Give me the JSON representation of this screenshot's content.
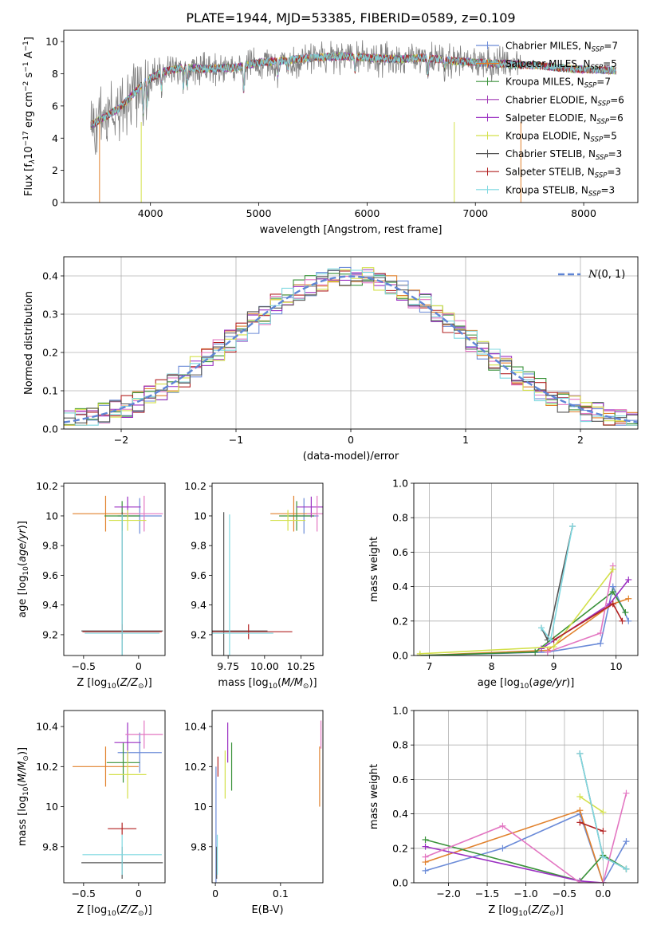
{
  "title": "PLATE=1944, MJD=53385, FIBERID=0589, z=0.109",
  "legend_models": [
    {
      "label": "Chabrier MILES, N",
      "sub": "SSP",
      "suffix": "=7",
      "color": "#6b8bd8"
    },
    {
      "label": "Salpeter MILES, N",
      "sub": "SSP",
      "suffix": "=5",
      "color": "#e1812c"
    },
    {
      "label": "Kroupa MILES, N",
      "sub": "SSP",
      "suffix": "=7",
      "color": "#3a923a"
    },
    {
      "label": "Chabrier ELODIE, N",
      "sub": "SSP",
      "suffix": "=6",
      "color": "#a03ab5"
    },
    {
      "label": "Salpeter ELODIE, N",
      "sub": "SSP",
      "suffix": "=6",
      "color": "#9b2fc2"
    },
    {
      "label": "Kroupa ELODIE, N",
      "sub": "SSP",
      "suffix": "=5",
      "color": "#d3e04a"
    },
    {
      "label": "Chabrier STELIB, N",
      "sub": "SSP",
      "suffix": "=3",
      "color": "#555555"
    },
    {
      "label": "Salpeter STELIB, N",
      "sub": "SSP",
      "suffix": "=3",
      "color": "#b22222"
    },
    {
      "label": "Kroupa STELIB, N",
      "sub": "SSP",
      "suffix": "=3",
      "color": "#7fd8e0"
    }
  ],
  "data_color": "#808080",
  "colors": {
    "blue": "#6b8bd8",
    "orange": "#e1812c",
    "green": "#3a923a",
    "red": "#b22222",
    "purple": "#9b2fc2",
    "pink": "#e377c2",
    "yellow": "#d3e04a",
    "cyan": "#7fd8e0",
    "gray": "#555555",
    "normal": "#5f85d6"
  },
  "chart_data": [
    {
      "type": "line",
      "xlabel": "wavelength [Angstrom, rest frame]",
      "ylabel": "Flux [f",
      "xlim": [
        3200,
        8500
      ],
      "ylim": [
        0,
        10.7
      ],
      "xticks": [
        4000,
        5000,
        6000,
        7000,
        8000
      ],
      "yticks": [
        0,
        2,
        4,
        6,
        8,
        10
      ],
      "spectrum_knots": {
        "x": [
          3450,
          3550,
          3700,
          3850,
          3950,
          4100,
          4300,
          4500,
          4800,
          5000,
          5200,
          5500,
          5800,
          6000,
          6300,
          6500,
          6800,
          7000,
          7300,
          7600,
          7900,
          8300
        ],
        "y": [
          4.8,
          5.2,
          5.8,
          6.8,
          7.5,
          8.1,
          8.4,
          8.3,
          8.4,
          8.7,
          8.8,
          9.0,
          9.1,
          9.0,
          8.9,
          9.0,
          8.8,
          8.7,
          8.6,
          8.5,
          8.3,
          8.2
        ]
      },
      "absorption_lines": [
        [
          3934,
          1.8
        ],
        [
          3969,
          1.5
        ],
        [
          4102,
          1.0
        ],
        [
          4304,
          1.2
        ],
        [
          4340,
          1.0
        ],
        [
          4861,
          1.5
        ],
        [
          5175,
          0.9
        ],
        [
          5270,
          0.5
        ],
        [
          5890,
          0.9
        ],
        [
          6563,
          1.0
        ],
        [
          6717,
          0.5
        ]
      ]
    },
    {
      "type": "bar",
      "xlabel": "(data-model)/error",
      "ylabel": "Normed distribution",
      "xlim": [
        -2.5,
        2.5
      ],
      "ylim": [
        0,
        0.45
      ],
      "xticks": [
        -2,
        -1,
        0,
        1,
        2
      ],
      "yticks": [
        0,
        0.1,
        0.2,
        0.3,
        0.4
      ],
      "bin_edges_start": -2.5,
      "bin_width": 0.1,
      "normal_label": "(0, 1)",
      "normal_label_prefix": "N"
    },
    {
      "type": "scatter",
      "xlabel": "Z [log",
      "ylabel": "age  [log",
      "xlim": [
        -0.68,
        0.24
      ],
      "ylim": [
        9.06,
        10.22
      ],
      "xticks": [
        -0.5,
        0.0
      ],
      "yticks": [
        9.2,
        9.4,
        9.6,
        9.8,
        10.0,
        10.2
      ],
      "points": [
        {
          "color": "blue",
          "x": 0.01,
          "xerr": 0.2,
          "y": 10.0,
          "yerr": 0.12
        },
        {
          "color": "orange",
          "x": -0.3,
          "xerr": 0.3,
          "y": 10.015,
          "yerr": 0.12
        },
        {
          "color": "green",
          "x": -0.15,
          "xerr": 0.16,
          "y": 10.0,
          "yerr": 0.1
        },
        {
          "color": "purple",
          "x": -0.1,
          "xerr": 0.12,
          "y": 10.06,
          "yerr": 0.07
        },
        {
          "color": "pink",
          "x": 0.05,
          "xerr": 0.17,
          "y": 10.015,
          "yerr": 0.12
        },
        {
          "color": "yellow",
          "x": -0.1,
          "xerr": 0.17,
          "y": 9.97,
          "yerr": 0.07
        },
        {
          "color": "gray",
          "x": -0.15,
          "xerr": 0.37,
          "y": 9.225,
          "yerr": 0.8
        },
        {
          "color": "red",
          "x": -0.15,
          "xerr": 0.36,
          "y": 9.22,
          "yerr": 0.05
        },
        {
          "color": "cyan",
          "x": -0.15,
          "xerr": 0.34,
          "y": 9.21,
          "yerr": 0.8
        }
      ]
    },
    {
      "type": "scatter",
      "xlabel": "mass [log",
      "ylabel": "",
      "xlim": [
        9.64,
        10.4
      ],
      "ylim": [
        9.06,
        10.22
      ],
      "xticks": [
        9.75,
        10.0,
        10.25
      ],
      "xticklabels": [
        "9.75",
        "10.00",
        "10.25"
      ],
      "yticks": [
        9.2,
        9.4,
        9.6,
        9.8,
        10.0,
        10.2
      ],
      "points": [
        {
          "color": "blue",
          "x": 10.27,
          "xerr": 0.1,
          "y": 10.0,
          "yerr": 0.12
        },
        {
          "color": "orange",
          "x": 10.2,
          "xerr": 0.16,
          "y": 10.015,
          "yerr": 0.12
        },
        {
          "color": "green",
          "x": 10.22,
          "xerr": 0.12,
          "y": 10.0,
          "yerr": 0.1
        },
        {
          "color": "purple",
          "x": 10.32,
          "xerr": 0.1,
          "y": 10.06,
          "yerr": 0.07
        },
        {
          "color": "pink",
          "x": 10.36,
          "xerr": 0.07,
          "y": 10.015,
          "yerr": 0.12
        },
        {
          "color": "yellow",
          "x": 10.16,
          "xerr": 0.12,
          "y": 9.97,
          "yerr": 0.07
        },
        {
          "color": "gray",
          "x": 9.72,
          "xerr": 0.3,
          "y": 9.225,
          "yerr": 0.8
        },
        {
          "color": "red",
          "x": 9.89,
          "xerr": 0.3,
          "y": 9.22,
          "yerr": 0.05
        },
        {
          "color": "cyan",
          "x": 9.76,
          "xerr": 0.3,
          "y": 9.21,
          "yerr": 0.8
        }
      ]
    },
    {
      "type": "line",
      "xlabel": "age  [log",
      "ylabel": "mass weight",
      "xlim": [
        6.75,
        10.35
      ],
      "ylim": [
        0,
        1.0
      ],
      "xticks": [
        7,
        8,
        9,
        10
      ],
      "yticks": [
        0,
        0.2,
        0.4,
        0.6,
        0.8,
        1.0
      ],
      "series": [
        {
          "color": "blue",
          "x": [
            6.85,
            8.9,
            9.75,
            9.95,
            10.2
          ],
          "y": [
            0.0,
            0.02,
            0.07,
            0.4,
            0.2
          ]
        },
        {
          "color": "orange",
          "x": [
            6.85,
            8.9,
            9.95,
            10.2
          ],
          "y": [
            0.0,
            0.03,
            0.3,
            0.33
          ]
        },
        {
          "color": "green",
          "x": [
            6.85,
            8.7,
            9.95,
            10.15
          ],
          "y": [
            0.0,
            0.02,
            0.37,
            0.25
          ]
        },
        {
          "color": "purple",
          "x": [
            8.8,
            9.9,
            10.2
          ],
          "y": [
            0.04,
            0.3,
            0.44
          ]
        },
        {
          "color": "pink",
          "x": [
            8.9,
            9.75,
            9.95
          ],
          "y": [
            0.02,
            0.13,
            0.52
          ]
        },
        {
          "color": "yellow",
          "x": [
            6.85,
            9.0,
            9.95
          ],
          "y": [
            0.01,
            0.05,
            0.5
          ]
        },
        {
          "color": "gray",
          "x": [
            8.8,
            8.9,
            9.3
          ],
          "y": [
            0.16,
            0.09,
            0.75
          ]
        },
        {
          "color": "red",
          "x": [
            9.0,
            9.95,
            10.1
          ],
          "y": [
            0.09,
            0.3,
            0.2
          ]
        },
        {
          "color": "cyan",
          "x": [
            8.8,
            8.95,
            9.3
          ],
          "y": [
            0.16,
            0.09,
            0.75
          ]
        }
      ]
    },
    {
      "type": "scatter",
      "xlabel": "Z [log",
      "ylabel": "mass [log",
      "xlim": [
        -0.68,
        0.24
      ],
      "ylim": [
        9.62,
        10.48
      ],
      "xticks": [
        -0.5,
        0.0
      ],
      "yticks": [
        9.8,
        10.0,
        10.2,
        10.4
      ],
      "points": [
        {
          "color": "blue",
          "x": 0.01,
          "xerr": 0.2,
          "y": 10.27,
          "yerr": 0.1
        },
        {
          "color": "orange",
          "x": -0.3,
          "xerr": 0.3,
          "y": 10.2,
          "yerr": 0.1
        },
        {
          "color": "green",
          "x": -0.14,
          "xerr": 0.15,
          "y": 10.22,
          "yerr": 0.1
        },
        {
          "color": "purple",
          "x": -0.1,
          "xerr": 0.12,
          "y": 10.32,
          "yerr": 0.1
        },
        {
          "color": "pink",
          "x": 0.05,
          "xerr": 0.17,
          "y": 10.36,
          "yerr": 0.07
        },
        {
          "color": "yellow",
          "x": -0.1,
          "xerr": 0.17,
          "y": 10.16,
          "yerr": 0.12
        },
        {
          "color": "gray",
          "x": -0.15,
          "xerr": 0.37,
          "y": 9.72,
          "yerr": 0.08
        },
        {
          "color": "red",
          "x": -0.15,
          "xerr": 0.13,
          "y": 9.89,
          "yerr": 0.03
        },
        {
          "color": "cyan",
          "x": -0.15,
          "xerr": 0.36,
          "y": 9.76,
          "yerr": 0.1
        }
      ]
    },
    {
      "type": "scatter",
      "xlabel": "E(B-V)",
      "ylabel": "",
      "xlim": [
        -0.005,
        0.165
      ],
      "ylim": [
        9.62,
        10.48
      ],
      "xticks": [
        0.0,
        0.1
      ],
      "yticks": [
        9.8,
        10.0,
        10.2,
        10.4
      ],
      "points": [
        {
          "color": "blue",
          "x": 0.001,
          "y": 9.9,
          "yerr": 0.3
        },
        {
          "color": "orange",
          "x": 0.16,
          "y": 10.15,
          "yerr": 0.15
        },
        {
          "color": "green",
          "x": 0.025,
          "y": 10.2,
          "yerr": 0.12
        },
        {
          "color": "purple",
          "x": 0.019,
          "y": 10.32,
          "yerr": 0.1
        },
        {
          "color": "pink",
          "x": 0.162,
          "y": 10.36,
          "yerr": 0.07
        },
        {
          "color": "yellow",
          "x": 0.015,
          "y": 10.16,
          "yerr": 0.12
        },
        {
          "color": "gray",
          "x": 0.002,
          "y": 9.72,
          "yerr": 0.08
        },
        {
          "color": "red",
          "x": 0.004,
          "y": 10.2,
          "yerr": 0.05
        },
        {
          "color": "cyan",
          "x": 0.003,
          "y": 9.76,
          "yerr": 0.1
        }
      ]
    },
    {
      "type": "line",
      "xlabel": "Z [log",
      "ylabel": "mass weight",
      "xlim": [
        -2.45,
        0.45
      ],
      "ylim": [
        0,
        1.0
      ],
      "xticks": [
        -2.0,
        -1.5,
        -1.0,
        -0.5,
        0.0
      ],
      "xticklabels": [
        "−2.0",
        "−1.5",
        "−1.0",
        "−0.5",
        "0.0"
      ],
      "yticks": [
        0,
        0.2,
        0.4,
        0.6,
        0.8,
        1.0
      ],
      "series": [
        {
          "color": "blue",
          "x": [
            -2.3,
            -1.3,
            -0.3,
            0.0,
            0.3
          ],
          "y": [
            0.07,
            0.2,
            0.4,
            0.0,
            0.24
          ]
        },
        {
          "color": "orange",
          "x": [
            -2.3,
            -0.3,
            0.0
          ],
          "y": [
            0.12,
            0.42,
            0.0
          ]
        },
        {
          "color": "green",
          "x": [
            -2.3,
            -0.3,
            0.0,
            0.3
          ],
          "y": [
            0.25,
            0.01,
            0.16,
            0.08
          ]
        },
        {
          "color": "purple",
          "x": [
            -2.3,
            -0.3,
            0.0
          ],
          "y": [
            0.21,
            0.01,
            0.0
          ]
        },
        {
          "color": "pink",
          "x": [
            -2.3,
            -1.3,
            -0.3,
            0.0,
            0.3
          ],
          "y": [
            0.15,
            0.33,
            0.0,
            0.0,
            0.52
          ]
        },
        {
          "color": "yellow",
          "x": [
            -0.3,
            0.0
          ],
          "y": [
            0.5,
            0.41
          ]
        },
        {
          "color": "gray",
          "x": [
            -0.3,
            0.0,
            0.3
          ],
          "y": [
            0.75,
            0.15,
            0.08
          ]
        },
        {
          "color": "red",
          "x": [
            -0.3,
            0.0
          ],
          "y": [
            0.35,
            0.3
          ]
        },
        {
          "color": "cyan",
          "x": [
            -0.3,
            0.0,
            0.3
          ],
          "y": [
            0.75,
            0.15,
            0.08
          ]
        }
      ]
    }
  ]
}
